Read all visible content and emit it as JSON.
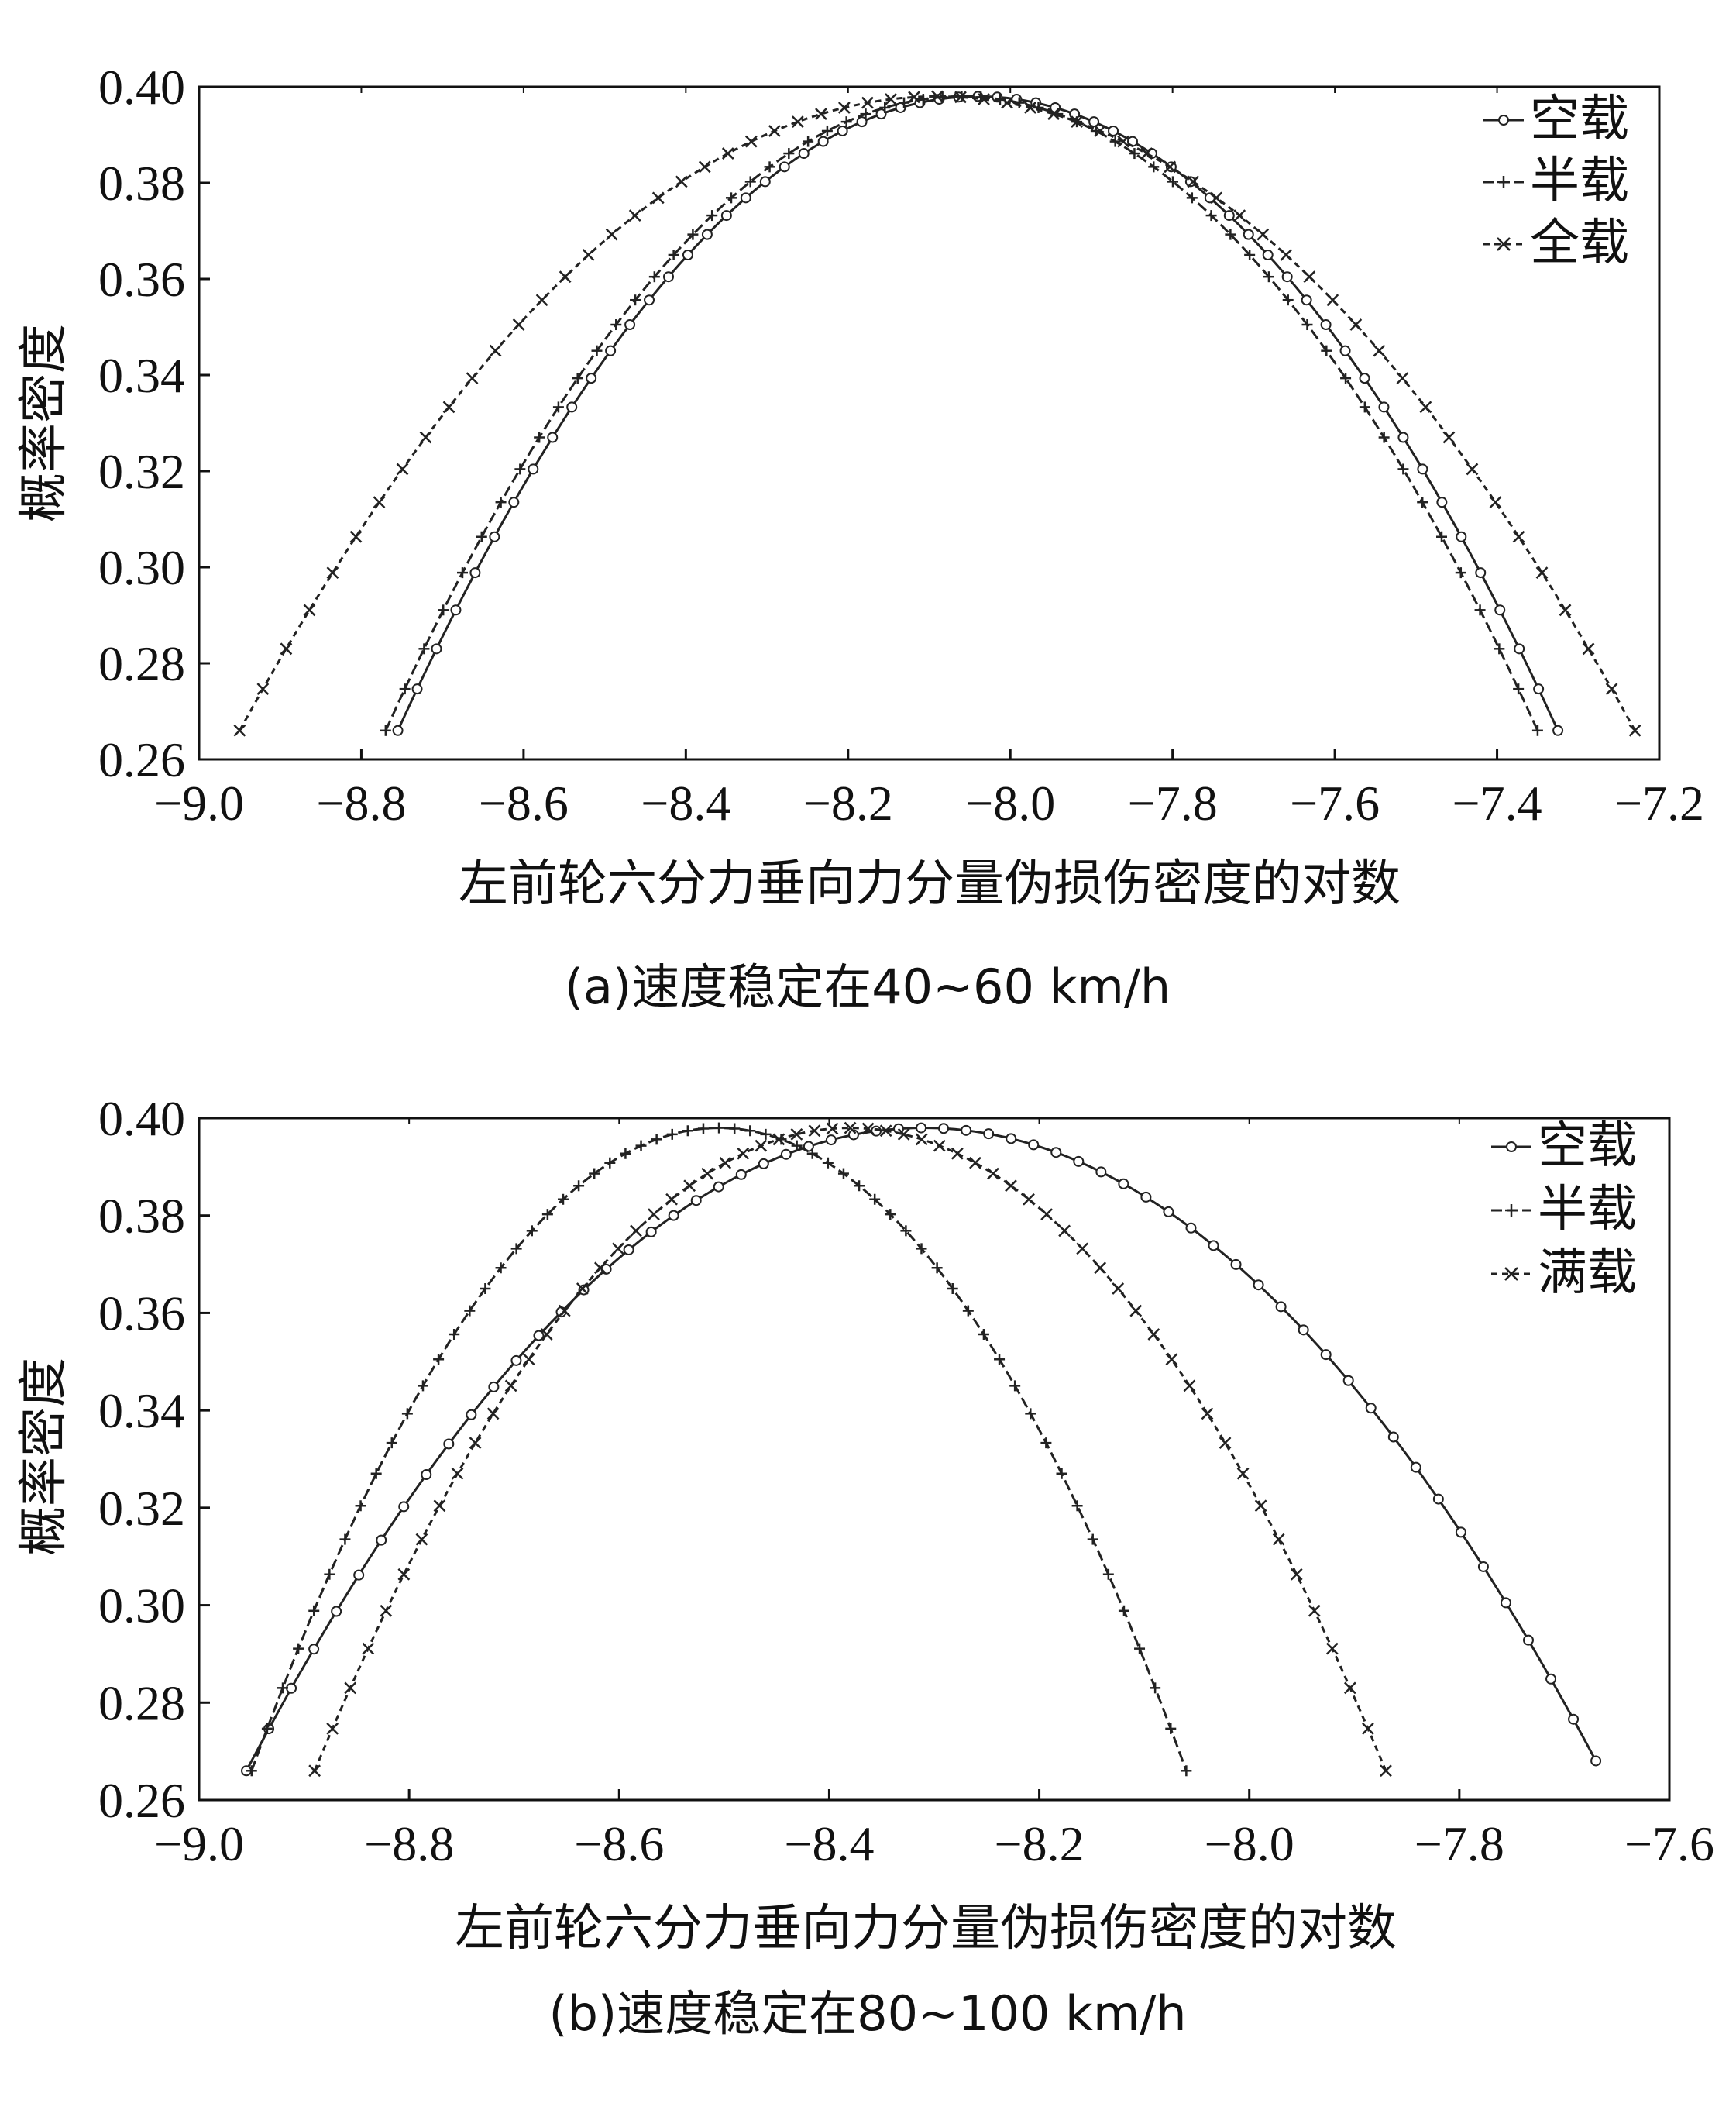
{
  "chart_data": [
    {
      "type": "line",
      "caption": "(a)速度稳定在40~60 km/h",
      "xlabel": "左前轮六分力垂向力分量伪损伤密度的对数",
      "ylabel": "概率密度",
      "xlim": [
        -9.0,
        -7.2
      ],
      "ylim": [
        0.26,
        0.4
      ],
      "xticks": [
        "−9.0",
        "−8.8",
        "−8.6",
        "−8.4",
        "−8.2",
        "−8.0",
        "−7.8",
        "−7.6",
        "−7.4",
        "−7.2"
      ],
      "yticks": [
        "0.26",
        "0.28",
        "0.30",
        "0.32",
        "0.34",
        "0.36",
        "0.38",
        "0.40"
      ],
      "legend_position": "top-right",
      "series": [
        {
          "name": "空载",
          "marker": "circle",
          "x_start": -8.755,
          "x_peak": -8.04,
          "x_end": -7.325,
          "y_peak": 0.398,
          "y_end": 0.266
        },
        {
          "name": "半载",
          "marker": "plus",
          "x_start": -8.77,
          "x_peak": -8.06,
          "x_end": -7.35,
          "y_peak": 0.398,
          "y_end": 0.266
        },
        {
          "name": "全载",
          "marker": "x",
          "x_start": -8.95,
          "x_peak": -8.09,
          "x_end": -7.23,
          "y_peak": 0.398,
          "y_end": 0.266
        }
      ]
    },
    {
      "type": "line",
      "caption": "(b)速度稳定在80~100 km/h",
      "xlabel": "左前轮六分力垂向力分量伪损伤密度的对数",
      "ylabel": "概率密度",
      "xlim": [
        -9.0,
        -7.6
      ],
      "ylim": [
        0.26,
        0.4
      ],
      "xticks": [
        "−9.0",
        "−8.8",
        "−8.6",
        "−8.4",
        "−8.2",
        "−8.0",
        "−7.8",
        "−7.6"
      ],
      "yticks": [
        "0.26",
        "0.28",
        "0.30",
        "0.32",
        "0.34",
        "0.36",
        "0.38",
        "0.40"
      ],
      "legend_position": "top-right",
      "series": [
        {
          "name": "空载",
          "marker": "circle",
          "x_start": -8.955,
          "x_peak": -8.31,
          "x_end": -7.67,
          "y_peak": 0.398,
          "y_end": 0.266
        },
        {
          "name": "半载",
          "marker": "plus",
          "x_start": -8.95,
          "x_peak": -8.505,
          "x_end": -8.06,
          "y_peak": 0.398,
          "y_end": 0.266
        },
        {
          "name": "满载",
          "marker": "x",
          "x_start": -8.89,
          "x_peak": -8.38,
          "x_end": -7.87,
          "y_peak": 0.398,
          "y_end": 0.266
        }
      ]
    }
  ]
}
